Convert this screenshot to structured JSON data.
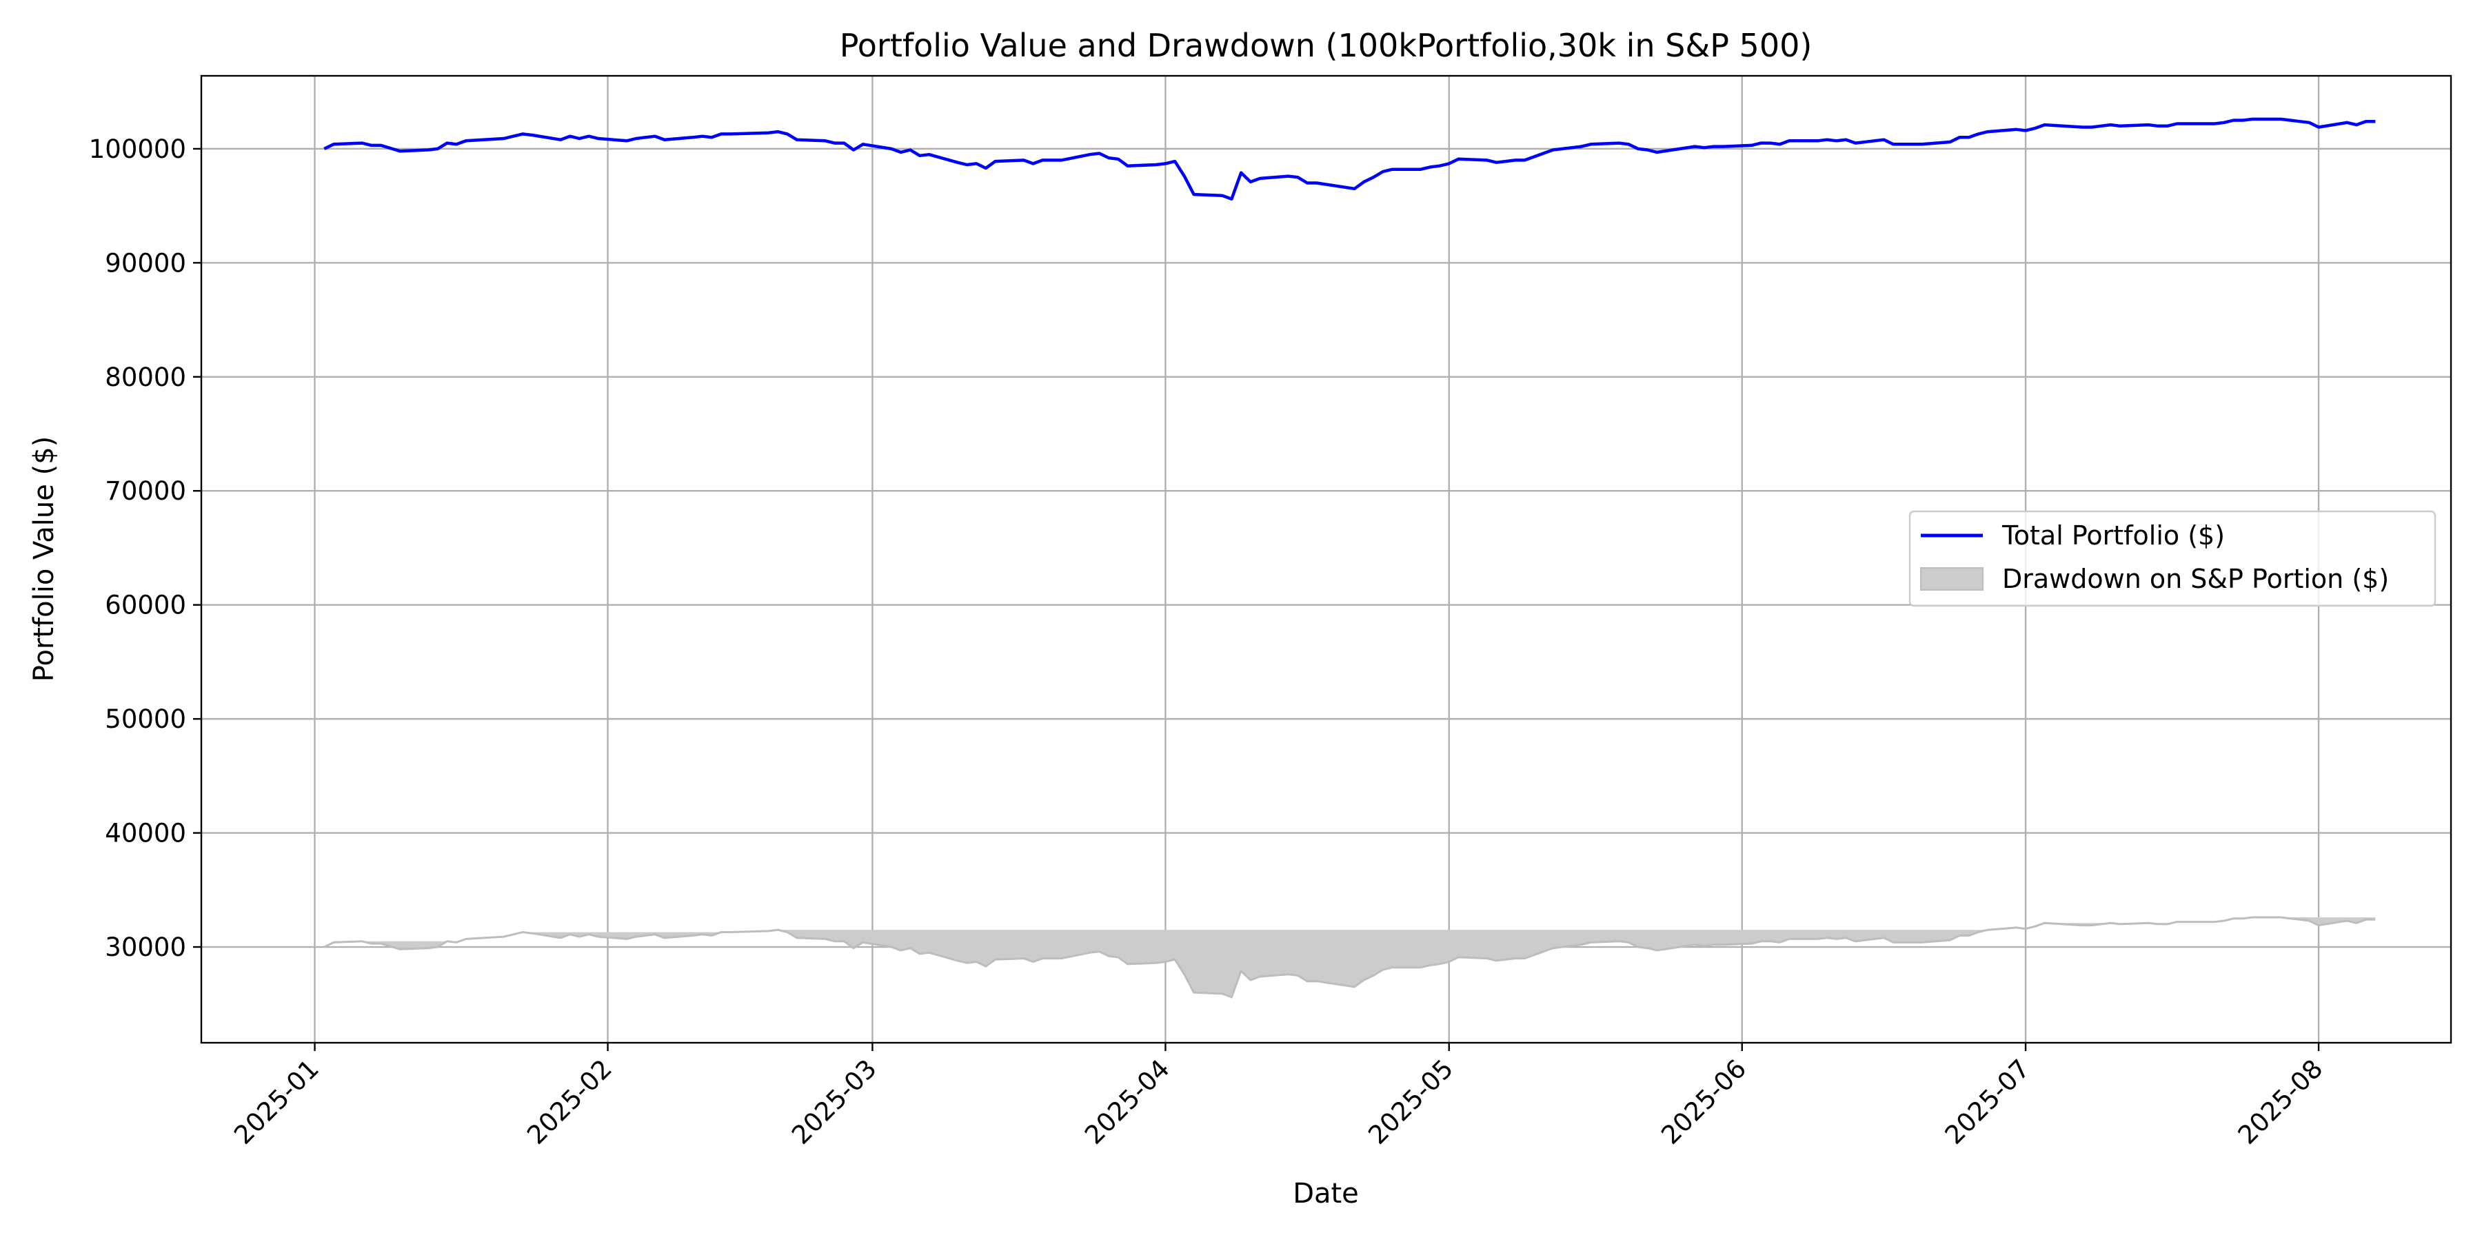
{
  "chart_data": {
    "type": "line",
    "title": "Portfolio Value and Drawdown (100kPortfolio,30k in S&P 500)",
    "xlabel": "Date",
    "ylabel": "Portfolio Value ($)",
    "x_ticks": [
      "2025-01",
      "2025-02",
      "2025-03",
      "2025-04",
      "2025-05",
      "2025-06",
      "2025-07",
      "2025-08"
    ],
    "y_ticks": [
      30000,
      40000,
      50000,
      60000,
      70000,
      80000,
      90000,
      100000
    ],
    "xlim": [
      "2024-12-20",
      "2025-08-15"
    ],
    "ylim": [
      21600,
      106400
    ],
    "grid": true,
    "legend_position": "center-right",
    "series": [
      {
        "name": "Total Portfolio ($)",
        "kind": "line",
        "color": "#0000ff",
        "points": [
          [
            "2025-01-02",
            100000
          ],
          [
            "2025-01-03",
            100400
          ],
          [
            "2025-01-06",
            100500
          ],
          [
            "2025-01-07",
            100300
          ],
          [
            "2025-01-08",
            100300
          ],
          [
            "2025-01-10",
            99800
          ],
          [
            "2025-01-13",
            99900
          ],
          [
            "2025-01-14",
            100000
          ],
          [
            "2025-01-15",
            100500
          ],
          [
            "2025-01-16",
            100400
          ],
          [
            "2025-01-17",
            100700
          ],
          [
            "2025-01-21",
            100900
          ],
          [
            "2025-01-22",
            101100
          ],
          [
            "2025-01-23",
            101300
          ],
          [
            "2025-01-24",
            101200
          ],
          [
            "2025-01-27",
            100800
          ],
          [
            "2025-01-28",
            101100
          ],
          [
            "2025-01-29",
            100900
          ],
          [
            "2025-01-30",
            101100
          ],
          [
            "2025-01-31",
            100900
          ],
          [
            "2025-02-03",
            100700
          ],
          [
            "2025-02-04",
            100900
          ],
          [
            "2025-02-05",
            101000
          ],
          [
            "2025-02-06",
            101100
          ],
          [
            "2025-02-07",
            100800
          ],
          [
            "2025-02-10",
            101000
          ],
          [
            "2025-02-11",
            101100
          ],
          [
            "2025-02-12",
            101000
          ],
          [
            "2025-02-13",
            101300
          ],
          [
            "2025-02-14",
            101300
          ],
          [
            "2025-02-18",
            101400
          ],
          [
            "2025-02-19",
            101500
          ],
          [
            "2025-02-20",
            101300
          ],
          [
            "2025-02-21",
            100800
          ],
          [
            "2025-02-24",
            100700
          ],
          [
            "2025-02-25",
            100500
          ],
          [
            "2025-02-26",
            100500
          ],
          [
            "2025-02-27",
            99900
          ],
          [
            "2025-02-28",
            100400
          ],
          [
            "2025-03-03",
            100000
          ],
          [
            "2025-03-04",
            99700
          ],
          [
            "2025-03-05",
            99900
          ],
          [
            "2025-03-06",
            99400
          ],
          [
            "2025-03-07",
            99500
          ],
          [
            "2025-03-10",
            98800
          ],
          [
            "2025-03-11",
            98600
          ],
          [
            "2025-03-12",
            98700
          ],
          [
            "2025-03-13",
            98300
          ],
          [
            "2025-03-14",
            98900
          ],
          [
            "2025-03-17",
            99000
          ],
          [
            "2025-03-18",
            98700
          ],
          [
            "2025-03-19",
            99000
          ],
          [
            "2025-03-20",
            99000
          ],
          [
            "2025-03-21",
            99000
          ],
          [
            "2025-03-24",
            99500
          ],
          [
            "2025-03-25",
            99600
          ],
          [
            "2025-03-26",
            99200
          ],
          [
            "2025-03-27",
            99100
          ],
          [
            "2025-03-28",
            98500
          ],
          [
            "2025-03-31",
            98600
          ],
          [
            "2025-04-01",
            98700
          ],
          [
            "2025-04-02",
            98900
          ],
          [
            "2025-04-03",
            97600
          ],
          [
            "2025-04-04",
            96000
          ],
          [
            "2025-04-07",
            95900
          ],
          [
            "2025-04-08",
            95600
          ],
          [
            "2025-04-09",
            97900
          ],
          [
            "2025-04-10",
            97100
          ],
          [
            "2025-04-11",
            97400
          ],
          [
            "2025-04-14",
            97600
          ],
          [
            "2025-04-15",
            97500
          ],
          [
            "2025-04-16",
            97000
          ],
          [
            "2025-04-17",
            97000
          ],
          [
            "2025-04-21",
            96500
          ],
          [
            "2025-04-22",
            97100
          ],
          [
            "2025-04-23",
            97500
          ],
          [
            "2025-04-24",
            98000
          ],
          [
            "2025-04-25",
            98200
          ],
          [
            "2025-04-28",
            98200
          ],
          [
            "2025-04-29",
            98400
          ],
          [
            "2025-04-30",
            98500
          ],
          [
            "2025-05-01",
            98700
          ],
          [
            "2025-05-02",
            99100
          ],
          [
            "2025-05-05",
            99000
          ],
          [
            "2025-05-06",
            98800
          ],
          [
            "2025-05-07",
            98900
          ],
          [
            "2025-05-08",
            99000
          ],
          [
            "2025-05-09",
            99000
          ],
          [
            "2025-05-12",
            99900
          ],
          [
            "2025-05-13",
            100000
          ],
          [
            "2025-05-14",
            100100
          ],
          [
            "2025-05-15",
            100200
          ],
          [
            "2025-05-16",
            100400
          ],
          [
            "2025-05-19",
            100500
          ],
          [
            "2025-05-20",
            100400
          ],
          [
            "2025-05-21",
            100000
          ],
          [
            "2025-05-22",
            99900
          ],
          [
            "2025-05-23",
            99700
          ],
          [
            "2025-05-27",
            100200
          ],
          [
            "2025-05-28",
            100100
          ],
          [
            "2025-05-29",
            100200
          ],
          [
            "2025-05-30",
            100200
          ],
          [
            "2025-06-02",
            100300
          ],
          [
            "2025-06-03",
            100500
          ],
          [
            "2025-06-04",
            100500
          ],
          [
            "2025-06-05",
            100400
          ],
          [
            "2025-06-06",
            100700
          ],
          [
            "2025-06-09",
            100700
          ],
          [
            "2025-06-10",
            100800
          ],
          [
            "2025-06-11",
            100700
          ],
          [
            "2025-06-12",
            100800
          ],
          [
            "2025-06-13",
            100500
          ],
          [
            "2025-06-16",
            100800
          ],
          [
            "2025-06-17",
            100400
          ],
          [
            "2025-06-18",
            100400
          ],
          [
            "2025-06-20",
            100400
          ],
          [
            "2025-06-23",
            100600
          ],
          [
            "2025-06-24",
            101000
          ],
          [
            "2025-06-25",
            101000
          ],
          [
            "2025-06-26",
            101300
          ],
          [
            "2025-06-27",
            101500
          ],
          [
            "2025-06-30",
            101700
          ],
          [
            "2025-07-01",
            101600
          ],
          [
            "2025-07-02",
            101800
          ],
          [
            "2025-07-03",
            102100
          ],
          [
            "2025-07-07",
            101900
          ],
          [
            "2025-07-08",
            101900
          ],
          [
            "2025-07-09",
            102000
          ],
          [
            "2025-07-10",
            102100
          ],
          [
            "2025-07-11",
            102000
          ],
          [
            "2025-07-14",
            102100
          ],
          [
            "2025-07-15",
            102000
          ],
          [
            "2025-07-16",
            102000
          ],
          [
            "2025-07-17",
            102200
          ],
          [
            "2025-07-18",
            102200
          ],
          [
            "2025-07-21",
            102200
          ],
          [
            "2025-07-22",
            102300
          ],
          [
            "2025-07-23",
            102500
          ],
          [
            "2025-07-24",
            102500
          ],
          [
            "2025-07-25",
            102600
          ],
          [
            "2025-07-28",
            102600
          ],
          [
            "2025-07-29",
            102500
          ],
          [
            "2025-07-30",
            102400
          ],
          [
            "2025-07-31",
            102300
          ],
          [
            "2025-08-01",
            101900
          ],
          [
            "2025-08-04",
            102300
          ],
          [
            "2025-08-05",
            102100
          ],
          [
            "2025-08-06",
            102400
          ],
          [
            "2025-08-07",
            102400
          ]
        ]
      },
      {
        "name": "Drawdown on S&P Portion ($)",
        "kind": "area",
        "color": "#cccccc",
        "edge_color": "#bdbdbd",
        "baseline": "running peak of S&P portion"
      }
    ]
  }
}
